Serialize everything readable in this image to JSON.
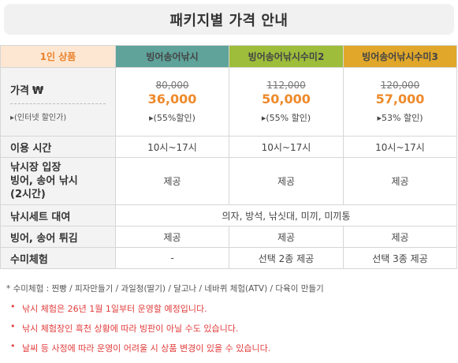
{
  "title": "패키지별 가격 안내",
  "header": {
    "col0": "1인 상품",
    "col1": "빙어송어낚시",
    "col2": "빙어송어낚시수미2",
    "col3": "빙어송어낚시수미3"
  },
  "price_row": {
    "label": "가격",
    "won_symbol": "₩",
    "sublabel": "▸(인터넷 할인가)",
    "items": [
      {
        "original": "80,000",
        "sale": "36,000",
        "discount": "▸(55%할인)"
      },
      {
        "original": "112,000",
        "sale": "50,000",
        "discount": "▸(55% 할인)"
      },
      {
        "original": "120,000",
        "sale": "57,000",
        "discount": "▸53% 할인)"
      }
    ]
  },
  "rows": {
    "time": {
      "label": "이용 시간",
      "values": [
        "10시~17시",
        "10시~17시",
        "10시~17시"
      ]
    },
    "fishing": {
      "label_lines": [
        "낚시장 입장",
        "빙어, 송어 낚시",
        "(2시간)"
      ],
      "values": [
        "제공",
        "제공",
        "제공"
      ]
    },
    "rental": {
      "label": "낚시세트 대여",
      "value": "의자, 방석, 낚싯대, 미끼, 미끼통"
    },
    "fry": {
      "label": "빙어, 송어 튀김",
      "values": [
        "제공",
        "제공",
        "제공"
      ]
    },
    "sumi": {
      "label": "수미체험",
      "values": [
        "-",
        "선택 2종 제공",
        "선택 3종 제공"
      ]
    }
  },
  "notes": {
    "star": "* 수미체험 : 찐빵 / 피자만들기 / 과일청(딸기) / 달고나 / 네바퀴 체험(ATV) / 다육이 만들기",
    "bullets": [
      "낚시 체험은 26년 1월 1일부터 운영할 예정입니다.",
      "낚시 체험장인 흑천 상황에 따라 빙판이 아닐 수도 있습니다.",
      "날씨 등 사정에 따라 운영이 어려울 시 상품 변경이 있을 수 있습니다."
    ]
  },
  "colors": {
    "header_label_bg": "#fde7d2",
    "header_label_text": "#e9822c",
    "col1_bg": "#5fa39b",
    "col2_bg": "#9dbd3b",
    "col3_bg": "#e0a72a",
    "sale_price": "#ee8a2b",
    "bullet_text": "#e23b3b"
  }
}
